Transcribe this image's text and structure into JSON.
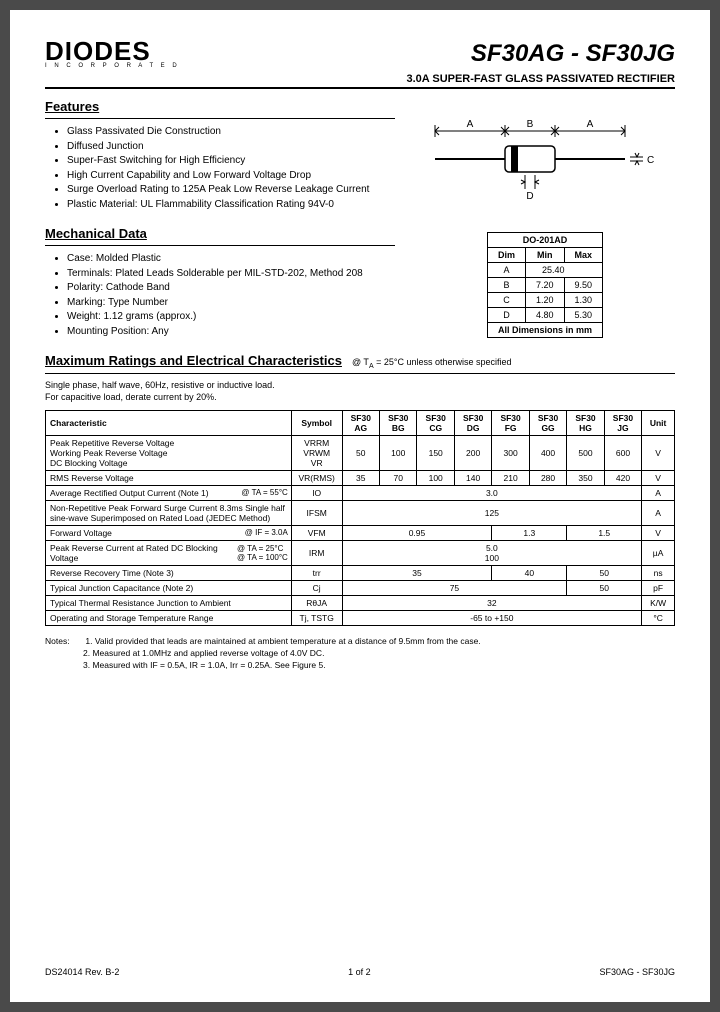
{
  "logo": {
    "main": "DIODES",
    "sub": "I N C O R P O R A T E D"
  },
  "part_number": "SF30AG - SF30JG",
  "subtitle": "3.0A SUPER-FAST GLASS PASSIVATED RECTIFIER",
  "features": {
    "title": "Features",
    "items": [
      "Glass Passivated Die Construction",
      "Diffused Junction",
      "Super-Fast Switching for High Efficiency",
      "High Current Capability and Low Forward Voltage Drop",
      "Surge Overload Rating to 125A Peak Low Reverse Leakage Current",
      "Plastic Material: UL Flammability Classification Rating 94V-0"
    ]
  },
  "mechanical": {
    "title": "Mechanical Data",
    "items": [
      "Case: Molded Plastic",
      "Terminals: Plated Leads Solderable per MIL-STD-202, Method 208",
      "Polarity: Cathode Band",
      "Marking: Type Number",
      "Weight: 1.12 grams (approx.)",
      "Mounting Position: Any"
    ]
  },
  "dim_table": {
    "title": "DO-201AD",
    "headers": [
      "Dim",
      "Min",
      "Max"
    ],
    "rows": [
      [
        "A",
        "25.40",
        ""
      ],
      [
        "B",
        "7.20",
        "9.50"
      ],
      [
        "C",
        "1.20",
        "1.30"
      ],
      [
        "D",
        "4.80",
        "5.30"
      ]
    ],
    "caption": "All Dimensions in mm"
  },
  "ratings": {
    "title": "Maximum Ratings and Electrical Characteristics",
    "condition": "@ TA = 25°C unless otherwise specified",
    "note": "Single phase, half wave, 60Hz, resistive or inductive load.\nFor capacitive load, derate current by 20%.",
    "headers": [
      "Characteristic",
      "Symbol",
      "SF30 AG",
      "SF30 BG",
      "SF30 CG",
      "SF30 DG",
      "SF30 FG",
      "SF30 GG",
      "SF30 HG",
      "SF30 JG",
      "Unit"
    ],
    "rows": [
      {
        "char": "Peak Repetitive Reverse Voltage\nWorking Peak Reverse Voltage\nDC Blocking Voltage",
        "sym": "VRRM\nVRWM\nVR",
        "vals": [
          "50",
          "100",
          "150",
          "200",
          "300",
          "400",
          "500",
          "600"
        ],
        "unit": "V"
      },
      {
        "char": "RMS Reverse Voltage",
        "sym": "VR(RMS)",
        "vals": [
          "35",
          "70",
          "100",
          "140",
          "210",
          "280",
          "350",
          "420"
        ],
        "unit": "V"
      },
      {
        "char": "Average Rectified Output Current (Note 1)",
        "cond": "@ TA = 55°C",
        "sym": "IO",
        "span": "3.0",
        "unit": "A"
      },
      {
        "char": "Non-Repetitive Peak Forward Surge Current 8.3ms Single half sine-wave Superimposed on Rated Load (JEDEC Method)",
        "sym": "IFSM",
        "span": "125",
        "unit": "A"
      },
      {
        "char": "Forward Voltage",
        "cond": "@ IF = 3.0A",
        "sym": "VFM",
        "groups": [
          {
            "span": 4,
            "val": "0.95"
          },
          {
            "span": 2,
            "val": "1.3"
          },
          {
            "span": 2,
            "val": "1.5"
          }
        ],
        "unit": "V"
      },
      {
        "char": "Peak Reverse Current at Rated DC Blocking Voltage",
        "cond": "@ TA =   25°C\n@ TA = 100°C",
        "sym": "IRM",
        "span": "5.0\n100",
        "unit": "µA"
      },
      {
        "char": "Reverse Recovery Time (Note 3)",
        "sym": "trr",
        "groups": [
          {
            "span": 4,
            "val": "35"
          },
          {
            "span": 2,
            "val": "40"
          },
          {
            "span": 2,
            "val": "50"
          }
        ],
        "unit": "ns"
      },
      {
        "char": "Typical Junction Capacitance (Note 2)",
        "sym": "Cj",
        "groups": [
          {
            "span": 6,
            "val": "75"
          },
          {
            "span": 2,
            "val": "50"
          }
        ],
        "unit": "pF"
      },
      {
        "char": "Typical Thermal Resistance Junction to Ambient",
        "sym": "RθJA",
        "span": "32",
        "unit": "K/W"
      },
      {
        "char": "Operating and Storage Temperature Range",
        "sym": "Tj, TSTG",
        "span": "-65 to +150",
        "unit": "°C"
      }
    ]
  },
  "notes": {
    "label": "Notes:",
    "items": [
      "1.  Valid provided that leads are maintained at ambient temperature at a distance of 9.5mm from the case.",
      "2.  Measured at 1.0MHz and applied reverse voltage of 4.0V DC.",
      "3.  Measured with IF = 0.5A, IR = 1.0A, Irr = 0.25A. See Figure 5."
    ]
  },
  "footer": {
    "left": "DS24014 Rev. B-2",
    "center": "1 of 2",
    "right": "SF30AG - SF30JG"
  },
  "diagram_labels": {
    "A1": "A",
    "B": "B",
    "A2": "A",
    "C": "C",
    "D": "D"
  }
}
